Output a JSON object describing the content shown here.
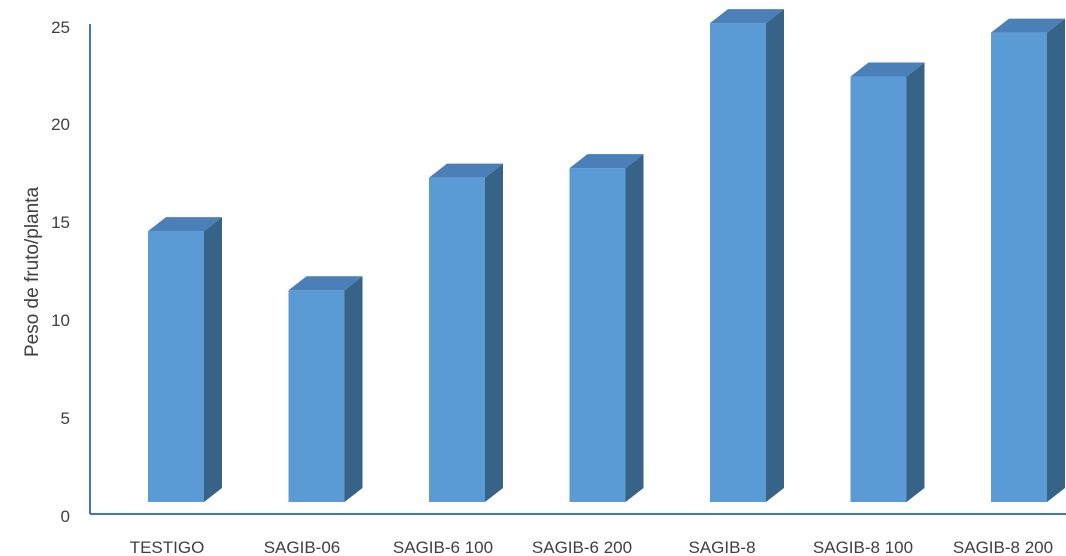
{
  "chart_data": {
    "type": "bar",
    "categories": [
      "TESTIGO",
      "SAGIB-06",
      "SAGIB-6 100",
      "SAGIB-6 200",
      "SAGIB-8",
      "SAGIB-8 100",
      "SAGIB-8 200"
    ],
    "values": [
      14.2,
      11.1,
      17.0,
      17.5,
      25.1,
      22.3,
      24.6
    ],
    "title": "",
    "xlabel": "",
    "ylabel": "Peso de fruto/planta",
    "ylim": [
      0,
      25
    ],
    "yticks": [
      "0",
      "5",
      "10",
      "15",
      "20",
      "25"
    ],
    "grid": false,
    "style": "3d-column",
    "colors": {
      "front": "#5b9bd5",
      "side": "#386388",
      "top": "#4a7fb7",
      "axis": "#4472c4"
    }
  }
}
